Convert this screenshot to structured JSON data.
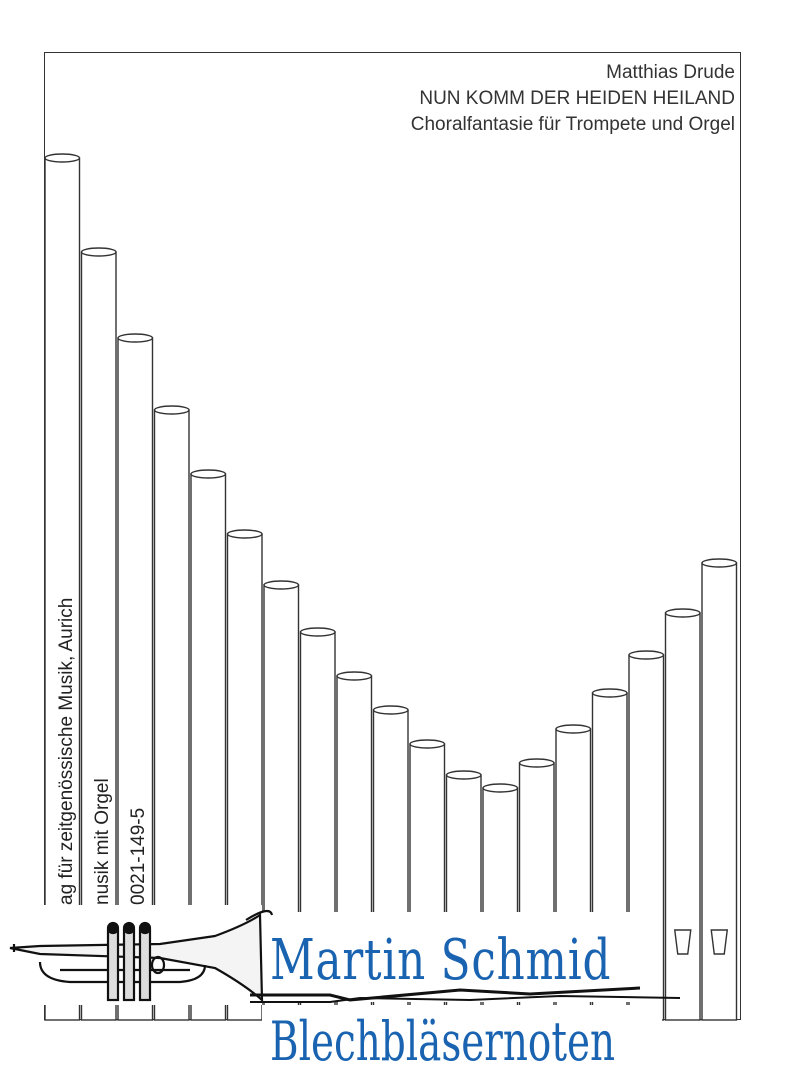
{
  "header": {
    "composer": "Matthias Drude",
    "title": "NUN KOMM DER HEIDEN HEILAND",
    "subtitle": "Choralfantasie für Trompete und Orgel"
  },
  "spine": {
    "publisher": "ag für zeitgenössische Musik, Aurich",
    "series": "nusik mit Orgel",
    "number": "0021-149-5"
  },
  "logo": {
    "line1": "Martin Schmid",
    "line2": "Blechbläsernoten",
    "icon": "trumpet-icon",
    "color": "#1a63b0"
  }
}
